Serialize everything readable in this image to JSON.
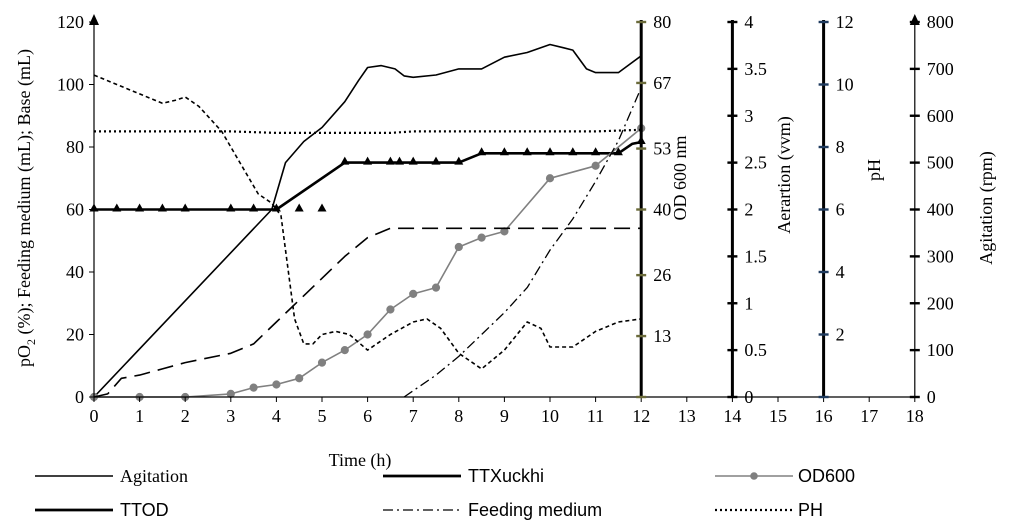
{
  "chart_data": {
    "type": "line",
    "xlabel": "Time (h)",
    "x_ticks": [
      0,
      1,
      2,
      3,
      4,
      5,
      6,
      7,
      8,
      9,
      10,
      11,
      12,
      13,
      14,
      15,
      16,
      17,
      18
    ],
    "xlim": [
      0,
      18
    ],
    "axes": {
      "left": {
        "label": "pO2 (%); Feeding medium (mL); Base (mL)",
        "label_main": "pO",
        "label_sub": "2",
        "label_rest": " (%); Feeding medium (mL); Base (mL)",
        "ticks": [
          0,
          20,
          40,
          60,
          80,
          100,
          120
        ],
        "ylim": [
          0,
          120
        ]
      },
      "od": {
        "label": "OD 600 nm",
        "ticks": [
          0,
          13,
          26,
          40,
          53,
          67,
          80
        ],
        "tick_labels": [
          "",
          "13",
          "26",
          "40",
          "53",
          "67",
          "80"
        ],
        "ylim": [
          0,
          80
        ]
      },
      "aer": {
        "label": "Aerartion (vvm)",
        "ticks": [
          0,
          0.5,
          1,
          1.5,
          2,
          2.5,
          3,
          3.5,
          4
        ],
        "tick_labels": [
          "0",
          "0.5",
          "1",
          "1.5",
          "2",
          "2.5",
          "3",
          "3.5",
          "4"
        ],
        "ylim": [
          0,
          4
        ]
      },
      "ph": {
        "label": "pH",
        "ticks": [
          0,
          2,
          4,
          6,
          8,
          10,
          12
        ],
        "tick_labels": [
          "",
          "2",
          "4",
          "6",
          "8",
          "10",
          "12"
        ],
        "ylim": [
          0,
          12
        ]
      },
      "agit": {
        "label": "Agitation (rpm)",
        "ticks": [
          0,
          100,
          200,
          300,
          400,
          500,
          600,
          700,
          800
        ],
        "ylim": [
          0,
          800
        ]
      }
    },
    "series": [
      {
        "name": "Agitation",
        "axis": "agit",
        "style": "solid",
        "color": "#000000",
        "points": [
          [
            0,
            0
          ],
          [
            3.9,
            400
          ],
          [
            4.2,
            500
          ],
          [
            4.6,
            545
          ],
          [
            5,
            575
          ],
          [
            5.5,
            630
          ],
          [
            5.8,
            675
          ],
          [
            6,
            703
          ],
          [
            6.3,
            707
          ],
          [
            6.6,
            700
          ],
          [
            6.8,
            685
          ],
          [
            7,
            682
          ],
          [
            7.5,
            687
          ],
          [
            8,
            700
          ],
          [
            8.5,
            700
          ],
          [
            9,
            725
          ],
          [
            9.5,
            735
          ],
          [
            10,
            752
          ],
          [
            10.3,
            745
          ],
          [
            10.5,
            740
          ],
          [
            10.8,
            700
          ],
          [
            11,
            692
          ],
          [
            11.5,
            692
          ],
          [
            12,
            728
          ]
        ]
      },
      {
        "name": "TTXuckhi",
        "axis": "aer",
        "style": "solid-thick",
        "color": "#000000",
        "points": [
          [
            0,
            2
          ],
          [
            4,
            2
          ],
          [
            5.5,
            2.5
          ],
          [
            8,
            2.5
          ],
          [
            8.5,
            2.6
          ],
          [
            11.5,
            2.6
          ],
          [
            11.8,
            2.7
          ],
          [
            12,
            2.72
          ]
        ],
        "markers": [
          [
            0,
            2
          ],
          [
            0.5,
            2
          ],
          [
            1,
            2
          ],
          [
            1.5,
            2
          ],
          [
            2,
            2
          ],
          [
            3,
            2
          ],
          [
            3.5,
            2
          ],
          [
            4,
            2
          ],
          [
            4.5,
            2
          ],
          [
            5,
            2
          ],
          [
            5.5,
            2.5
          ],
          [
            6,
            2.5
          ],
          [
            6.5,
            2.5
          ],
          [
            6.7,
            2.5
          ],
          [
            7,
            2.5
          ],
          [
            7.5,
            2.5
          ],
          [
            8,
            2.5
          ],
          [
            8.5,
            2.6
          ],
          [
            9,
            2.6
          ],
          [
            9.5,
            2.6
          ],
          [
            10,
            2.6
          ],
          [
            10.5,
            2.6
          ],
          [
            11,
            2.6
          ],
          [
            11.5,
            2.6
          ],
          [
            12,
            2.72
          ]
        ]
      },
      {
        "name": "OD600",
        "axis": "left",
        "style": "solid-gray",
        "color": "#808080",
        "points": [
          [
            0,
            0
          ],
          [
            1,
            0
          ],
          [
            2,
            0
          ],
          [
            3,
            1
          ],
          [
            3.5,
            3
          ],
          [
            4,
            4
          ],
          [
            4.5,
            6
          ],
          [
            5,
            11
          ],
          [
            5.5,
            15
          ],
          [
            6,
            20
          ],
          [
            6.5,
            28
          ],
          [
            7,
            33
          ],
          [
            7.5,
            35
          ],
          [
            8,
            48
          ],
          [
            8.5,
            51
          ],
          [
            9,
            53
          ],
          [
            10,
            70
          ],
          [
            11,
            74
          ],
          [
            12,
            86
          ]
        ]
      },
      {
        "name": "TTOD",
        "axis": "left",
        "style": "dashed",
        "color": "#000000",
        "points": [
          [
            0,
            0
          ],
          [
            0.3,
            1
          ],
          [
            0.6,
            6
          ],
          [
            1,
            7
          ],
          [
            1.5,
            9
          ],
          [
            2,
            11
          ],
          [
            3,
            14
          ],
          [
            3.5,
            17
          ],
          [
            4,
            24
          ],
          [
            4.5,
            31
          ],
          [
            5,
            38
          ],
          [
            5.5,
            45
          ],
          [
            6,
            51
          ],
          [
            6.5,
            54
          ],
          [
            6.7,
            54
          ],
          [
            7,
            54
          ],
          [
            12,
            54
          ]
        ]
      },
      {
        "name": "Feeding medium",
        "axis": "left",
        "style": "dashdot",
        "color": "#000000",
        "points": [
          [
            6.8,
            0
          ],
          [
            7.5,
            7
          ],
          [
            8,
            13
          ],
          [
            8.5,
            20
          ],
          [
            9,
            27
          ],
          [
            9.5,
            35
          ],
          [
            10,
            47
          ],
          [
            10.5,
            57
          ],
          [
            11,
            69
          ],
          [
            11.5,
            82
          ],
          [
            12,
            99
          ]
        ]
      },
      {
        "name": "PH",
        "axis": "left",
        "style": "dotted",
        "color": "#000000",
        "points": [
          [
            0,
            85
          ],
          [
            1,
            85
          ],
          [
            2,
            85
          ],
          [
            3,
            85
          ],
          [
            4,
            84.5
          ],
          [
            5,
            84.5
          ],
          [
            6,
            84.5
          ],
          [
            6.5,
            84.5
          ],
          [
            7,
            85
          ],
          [
            8,
            85
          ],
          [
            9,
            85
          ],
          [
            10,
            85
          ],
          [
            11,
            85
          ],
          [
            12,
            85.5
          ]
        ]
      },
      {
        "name": "pO2",
        "axis": "left",
        "style": "shortdash",
        "color": "#000000",
        "points": [
          [
            0,
            103
          ],
          [
            0.5,
            100
          ],
          [
            1,
            97
          ],
          [
            1.5,
            94
          ],
          [
            1.8,
            95
          ],
          [
            2,
            96
          ],
          [
            2.3,
            93
          ],
          [
            2.8,
            85
          ],
          [
            3.2,
            75
          ],
          [
            3.6,
            65
          ],
          [
            3.9,
            62
          ],
          [
            4.1,
            58
          ],
          [
            4.4,
            25
          ],
          [
            4.6,
            17
          ],
          [
            4.8,
            17
          ],
          [
            5,
            20
          ],
          [
            5.3,
            21
          ],
          [
            5.6,
            20
          ],
          [
            6,
            15
          ],
          [
            6.5,
            20
          ],
          [
            7,
            24
          ],
          [
            7.3,
            25
          ],
          [
            7.6,
            22
          ],
          [
            8,
            14
          ],
          [
            8.5,
            9
          ],
          [
            9,
            15
          ],
          [
            9.5,
            24
          ],
          [
            9.8,
            22
          ],
          [
            10,
            16
          ],
          [
            10.5,
            16
          ],
          [
            11,
            21
          ],
          [
            11.5,
            24
          ],
          [
            12,
            25
          ]
        ]
      }
    ],
    "legend": {
      "placement": "bottom",
      "items": [
        {
          "label": "Agitation",
          "style": "solid"
        },
        {
          "label": "TTXuckhi",
          "style": "solid-thick"
        },
        {
          "label": "OD600",
          "style": "solid-gray-marker"
        },
        {
          "label": "TTOD",
          "style": "solid-thick"
        },
        {
          "label": "Feeding medium",
          "style": "dashdot"
        },
        {
          "label": "PH",
          "style": "dotted"
        }
      ]
    }
  }
}
